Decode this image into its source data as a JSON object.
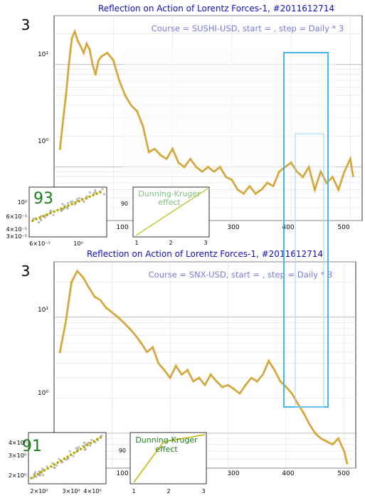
{
  "charts": [
    {
      "big_number": "3",
      "title": "Reflection on Action of Lorentz Forces-1, #2011612714",
      "subtitle": "Course = SUSHI-USD, start = , step = Daily * 3",
      "x_ticks": [
        "100",
        "200",
        "300",
        "400",
        "500"
      ],
      "y_ticks": [
        "10¹",
        "10⁰"
      ],
      "inset_scatter": {
        "number": "93",
        "y_ticks": [
          "10⁰",
          "6×10⁻¹",
          "4×10⁻¹",
          "3×10⁻¹"
        ],
        "x_ticks": [
          "6×10⁻¹",
          "10⁰"
        ]
      },
      "inset_dk": {
        "label_line1": "Dunning-Kruger",
        "label_line2": "effect",
        "y_tick": "90",
        "x_ticks": [
          "1",
          "2",
          "3"
        ]
      }
    },
    {
      "big_number": "3",
      "title": "Reflection on Action of Lorentz Forces-1, #2011612714",
      "subtitle": "Course = SNX-USD, start = , step = Daily * 3",
      "x_ticks": [
        "100",
        "200",
        "300",
        "400",
        "500"
      ],
      "y_ticks": [
        "10¹",
        "10⁰"
      ],
      "inset_scatter": {
        "number": "91",
        "y_ticks": [
          "4×10⁰",
          "3×10⁰",
          "2×10⁰"
        ],
        "x_ticks": [
          "2×10⁰",
          "3×10⁰",
          "4×10⁰"
        ]
      },
      "inset_dk": {
        "label_line1": "Dunning-Kruger",
        "label_line2": "effect",
        "y_tick": "90",
        "x_ticks": [
          "1",
          "2",
          "3"
        ]
      }
    }
  ],
  "chart_data": [
    {
      "type": "line",
      "title": "Reflection on Action of Lorentz Forces-1, #2011612714",
      "subtitle": "Course = SUSHI-USD, start = , step = Daily * 3",
      "yscale": "log",
      "xlim": [
        0,
        520
      ],
      "ylim": [
        0.3,
        30
      ],
      "colors": {
        "price": "#c8a000",
        "path": "#d4b020",
        "fast": "#ff3000"
      },
      "series": [
        {
          "x": [
            10,
            15,
            20,
            25,
            30,
            35,
            40,
            45,
            50,
            55,
            60,
            65,
            70,
            75,
            80,
            90,
            100,
            110,
            120,
            130,
            140,
            150,
            160,
            170,
            180,
            190,
            200,
            210,
            220,
            230,
            240,
            250,
            260,
            270,
            280,
            290,
            300,
            310,
            320,
            330,
            340,
            350,
            360,
            370,
            380,
            390,
            400,
            410,
            420,
            430,
            440,
            450,
            460,
            470,
            480,
            490,
            500,
            505
          ],
          "values": [
            1.5,
            2.8,
            5,
            10,
            18,
            21,
            17,
            15,
            13,
            16,
            14,
            10,
            8,
            11,
            12,
            13,
            11,
            7,
            5,
            4,
            3.5,
            2.5,
            1.4,
            1.5,
            1.3,
            1.2,
            1.5,
            1.1,
            1.0,
            1.2,
            1.0,
            0.9,
            1.0,
            0.9,
            1.0,
            0.8,
            0.75,
            0.6,
            0.55,
            0.65,
            0.55,
            0.6,
            0.7,
            0.65,
            0.9,
            1.0,
            1.1,
            0.9,
            0.8,
            1.0,
            0.6,
            0.9,
            0.7,
            0.8,
            0.6,
            0.9,
            1.2,
            0.8
          ]
        }
      ]
    },
    {
      "type": "line",
      "title": "Reflection on Action of Lorentz Forces-1, #2011612714",
      "subtitle": "Course = SNX-USD, start = , step = Daily * 3",
      "yscale": "log",
      "xlim": [
        0,
        520
      ],
      "ylim": [
        0.5,
        30
      ],
      "colors": {
        "price": "#c8a000",
        "path": "#d4b020",
        "fast": "#ff3000"
      },
      "series": [
        {
          "x": [
            10,
            20,
            30,
            40,
            50,
            60,
            70,
            80,
            90,
            100,
            110,
            120,
            130,
            140,
            150,
            160,
            170,
            180,
            190,
            200,
            210,
            220,
            230,
            240,
            250,
            260,
            270,
            280,
            290,
            300,
            310,
            320,
            330,
            340,
            350,
            360,
            370,
            380,
            390,
            400,
            410,
            420,
            430,
            440,
            450,
            460,
            470,
            480,
            490,
            500,
            505
          ],
          "values": [
            5,
            9,
            20,
            25,
            22,
            18,
            15,
            14,
            12,
            11,
            10,
            9,
            8,
            7,
            6,
            5,
            5.5,
            4,
            3.5,
            3,
            3.8,
            3.2,
            3.5,
            2.8,
            3.0,
            2.6,
            3.2,
            2.8,
            2.5,
            2.6,
            2.4,
            2.2,
            2.6,
            3.0,
            2.8,
            3.2,
            4.2,
            3.5,
            2.8,
            2.5,
            2.2,
            1.8,
            1.5,
            1.2,
            1.0,
            0.9,
            0.85,
            0.8,
            0.9,
            0.7,
            0.55
          ]
        }
      ]
    }
  ]
}
